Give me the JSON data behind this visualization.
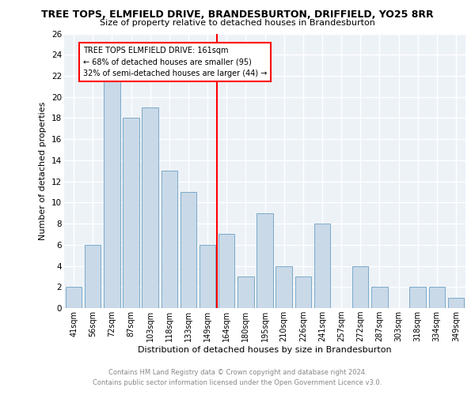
{
  "title": "TREE TOPS, ELMFIELD DRIVE, BRANDESBURTON, DRIFFIELD, YO25 8RR",
  "subtitle": "Size of property relative to detached houses in Brandesburton",
  "xlabel": "Distribution of detached houses by size in Brandesburton",
  "ylabel": "Number of detached properties",
  "categories": [
    "41sqm",
    "56sqm",
    "72sqm",
    "87sqm",
    "103sqm",
    "118sqm",
    "133sqm",
    "149sqm",
    "164sqm",
    "180sqm",
    "195sqm",
    "210sqm",
    "226sqm",
    "241sqm",
    "257sqm",
    "272sqm",
    "287sqm",
    "303sqm",
    "318sqm",
    "334sqm",
    "349sqm"
  ],
  "values": [
    2,
    6,
    22,
    18,
    19,
    13,
    11,
    6,
    7,
    3,
    9,
    4,
    3,
    8,
    0,
    4,
    2,
    0,
    2,
    2,
    1
  ],
  "bar_color": "#c9d9e8",
  "bar_edge_color": "#7baac8",
  "vline_x_idx": 8,
  "vline_color": "red",
  "annotation_text": "TREE TOPS ELMFIELD DRIVE: 161sqm\n← 68% of detached houses are smaller (95)\n32% of semi-detached houses are larger (44) →",
  "annotation_box_color": "white",
  "annotation_box_edge": "red",
  "ylim": [
    0,
    26
  ],
  "yticks": [
    0,
    2,
    4,
    6,
    8,
    10,
    12,
    14,
    16,
    18,
    20,
    22,
    24,
    26
  ],
  "footer_line1": "Contains HM Land Registry data © Crown copyright and database right 2024.",
  "footer_line2": "Contains public sector information licensed under the Open Government Licence v3.0.",
  "background_color": "#edf2f7",
  "grid_color": "white"
}
